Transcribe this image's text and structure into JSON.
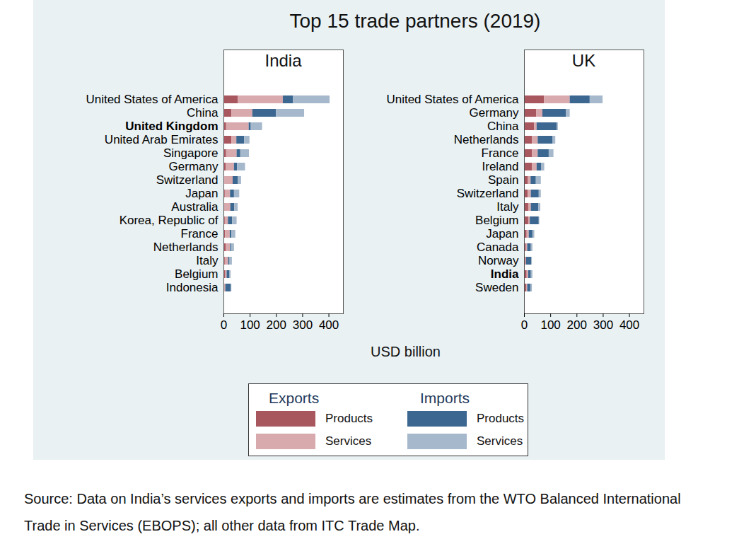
{
  "title": "Top 15 trade partners (2019)",
  "x_label": "USD billion",
  "source": "Source: Data on India’s services exports and imports are estimates from the WTO Balanced International Trade in Services (EBOPS); all other data from ITC Trade Map.",
  "chart_data": [
    {
      "type": "bar",
      "title": "India",
      "orientation": "horizontal",
      "stacked": true,
      "legend": "bottom",
      "categories": [
        "United States of America",
        "China",
        "United Kingdom",
        "United Arab Emirates",
        "Singapore",
        "Germany",
        "Switzerland",
        "Japan",
        "Australia",
        "Korea, Republic of",
        "France",
        "Netherlands",
        "Italy",
        "Belgium",
        "Indonesia"
      ],
      "series": [
        {
          "name": "Products",
          "group": "Exports",
          "color": "#a9575f",
          "values": [
            54,
            30,
            10,
            30,
            10,
            8,
            3,
            5,
            4,
            5,
            6,
            9,
            5,
            7,
            4
          ]
        },
        {
          "name": "Services",
          "group": "Exports",
          "color": "#d8a9ad",
          "values": [
            172,
            80,
            86,
            19,
            40,
            32,
            32,
            20,
            22,
            12,
            18,
            16,
            13,
            5,
            3
          ]
        },
        {
          "name": "Products",
          "group": "Imports",
          "color": "#3b6790",
          "values": [
            38,
            90,
            8,
            30,
            14,
            12,
            20,
            15,
            15,
            16,
            6,
            4,
            5,
            11,
            20
          ]
        },
        {
          "name": "Services",
          "group": "Imports",
          "color": "#a6b8cb",
          "values": [
            140,
            107,
            43,
            20,
            33,
            30,
            12,
            20,
            13,
            17,
            15,
            11,
            9,
            4,
            3
          ]
        }
      ],
      "xlim": [
        0,
        455
      ],
      "xticks": [
        0,
        100,
        200,
        300,
        400
      ]
    },
    {
      "type": "bar",
      "title": "UK",
      "orientation": "horizontal",
      "stacked": true,
      "legend": "bottom",
      "categories": [
        "United States of America",
        "Germany",
        "China",
        "Netherlands",
        "France",
        "Ireland",
        "Spain",
        "Switzerland",
        "Italy",
        "Belgium",
        "Japan",
        "Canada",
        "Norway",
        "India",
        "Sweden"
      ],
      "series": [
        {
          "name": "Products",
          "group": "Exports",
          "color": "#a9575f",
          "values": [
            76,
            46,
            38,
            30,
            30,
            30,
            15,
            14,
            16,
            16,
            10,
            7,
            5,
            10,
            8
          ]
        },
        {
          "name": "Services",
          "group": "Exports",
          "color": "#d8a9ad",
          "values": [
            98,
            24,
            10,
            22,
            22,
            18,
            10,
            12,
            10,
            6,
            8,
            5,
            3,
            6,
            4
          ]
        },
        {
          "name": "Products",
          "group": "Imports",
          "color": "#3b6790",
          "values": [
            76,
            90,
            76,
            57,
            42,
            18,
            20,
            30,
            28,
            34,
            14,
            14,
            20,
            10,
            12
          ]
        },
        {
          "name": "Services",
          "group": "Imports",
          "color": "#a6b8cb",
          "values": [
            49,
            14,
            5,
            10,
            18,
            11,
            19,
            8,
            8,
            2,
            7,
            6,
            2,
            6,
            6
          ]
        }
      ],
      "xlim": [
        0,
        455
      ],
      "xticks": [
        0,
        100,
        200,
        300,
        400
      ]
    }
  ]
}
